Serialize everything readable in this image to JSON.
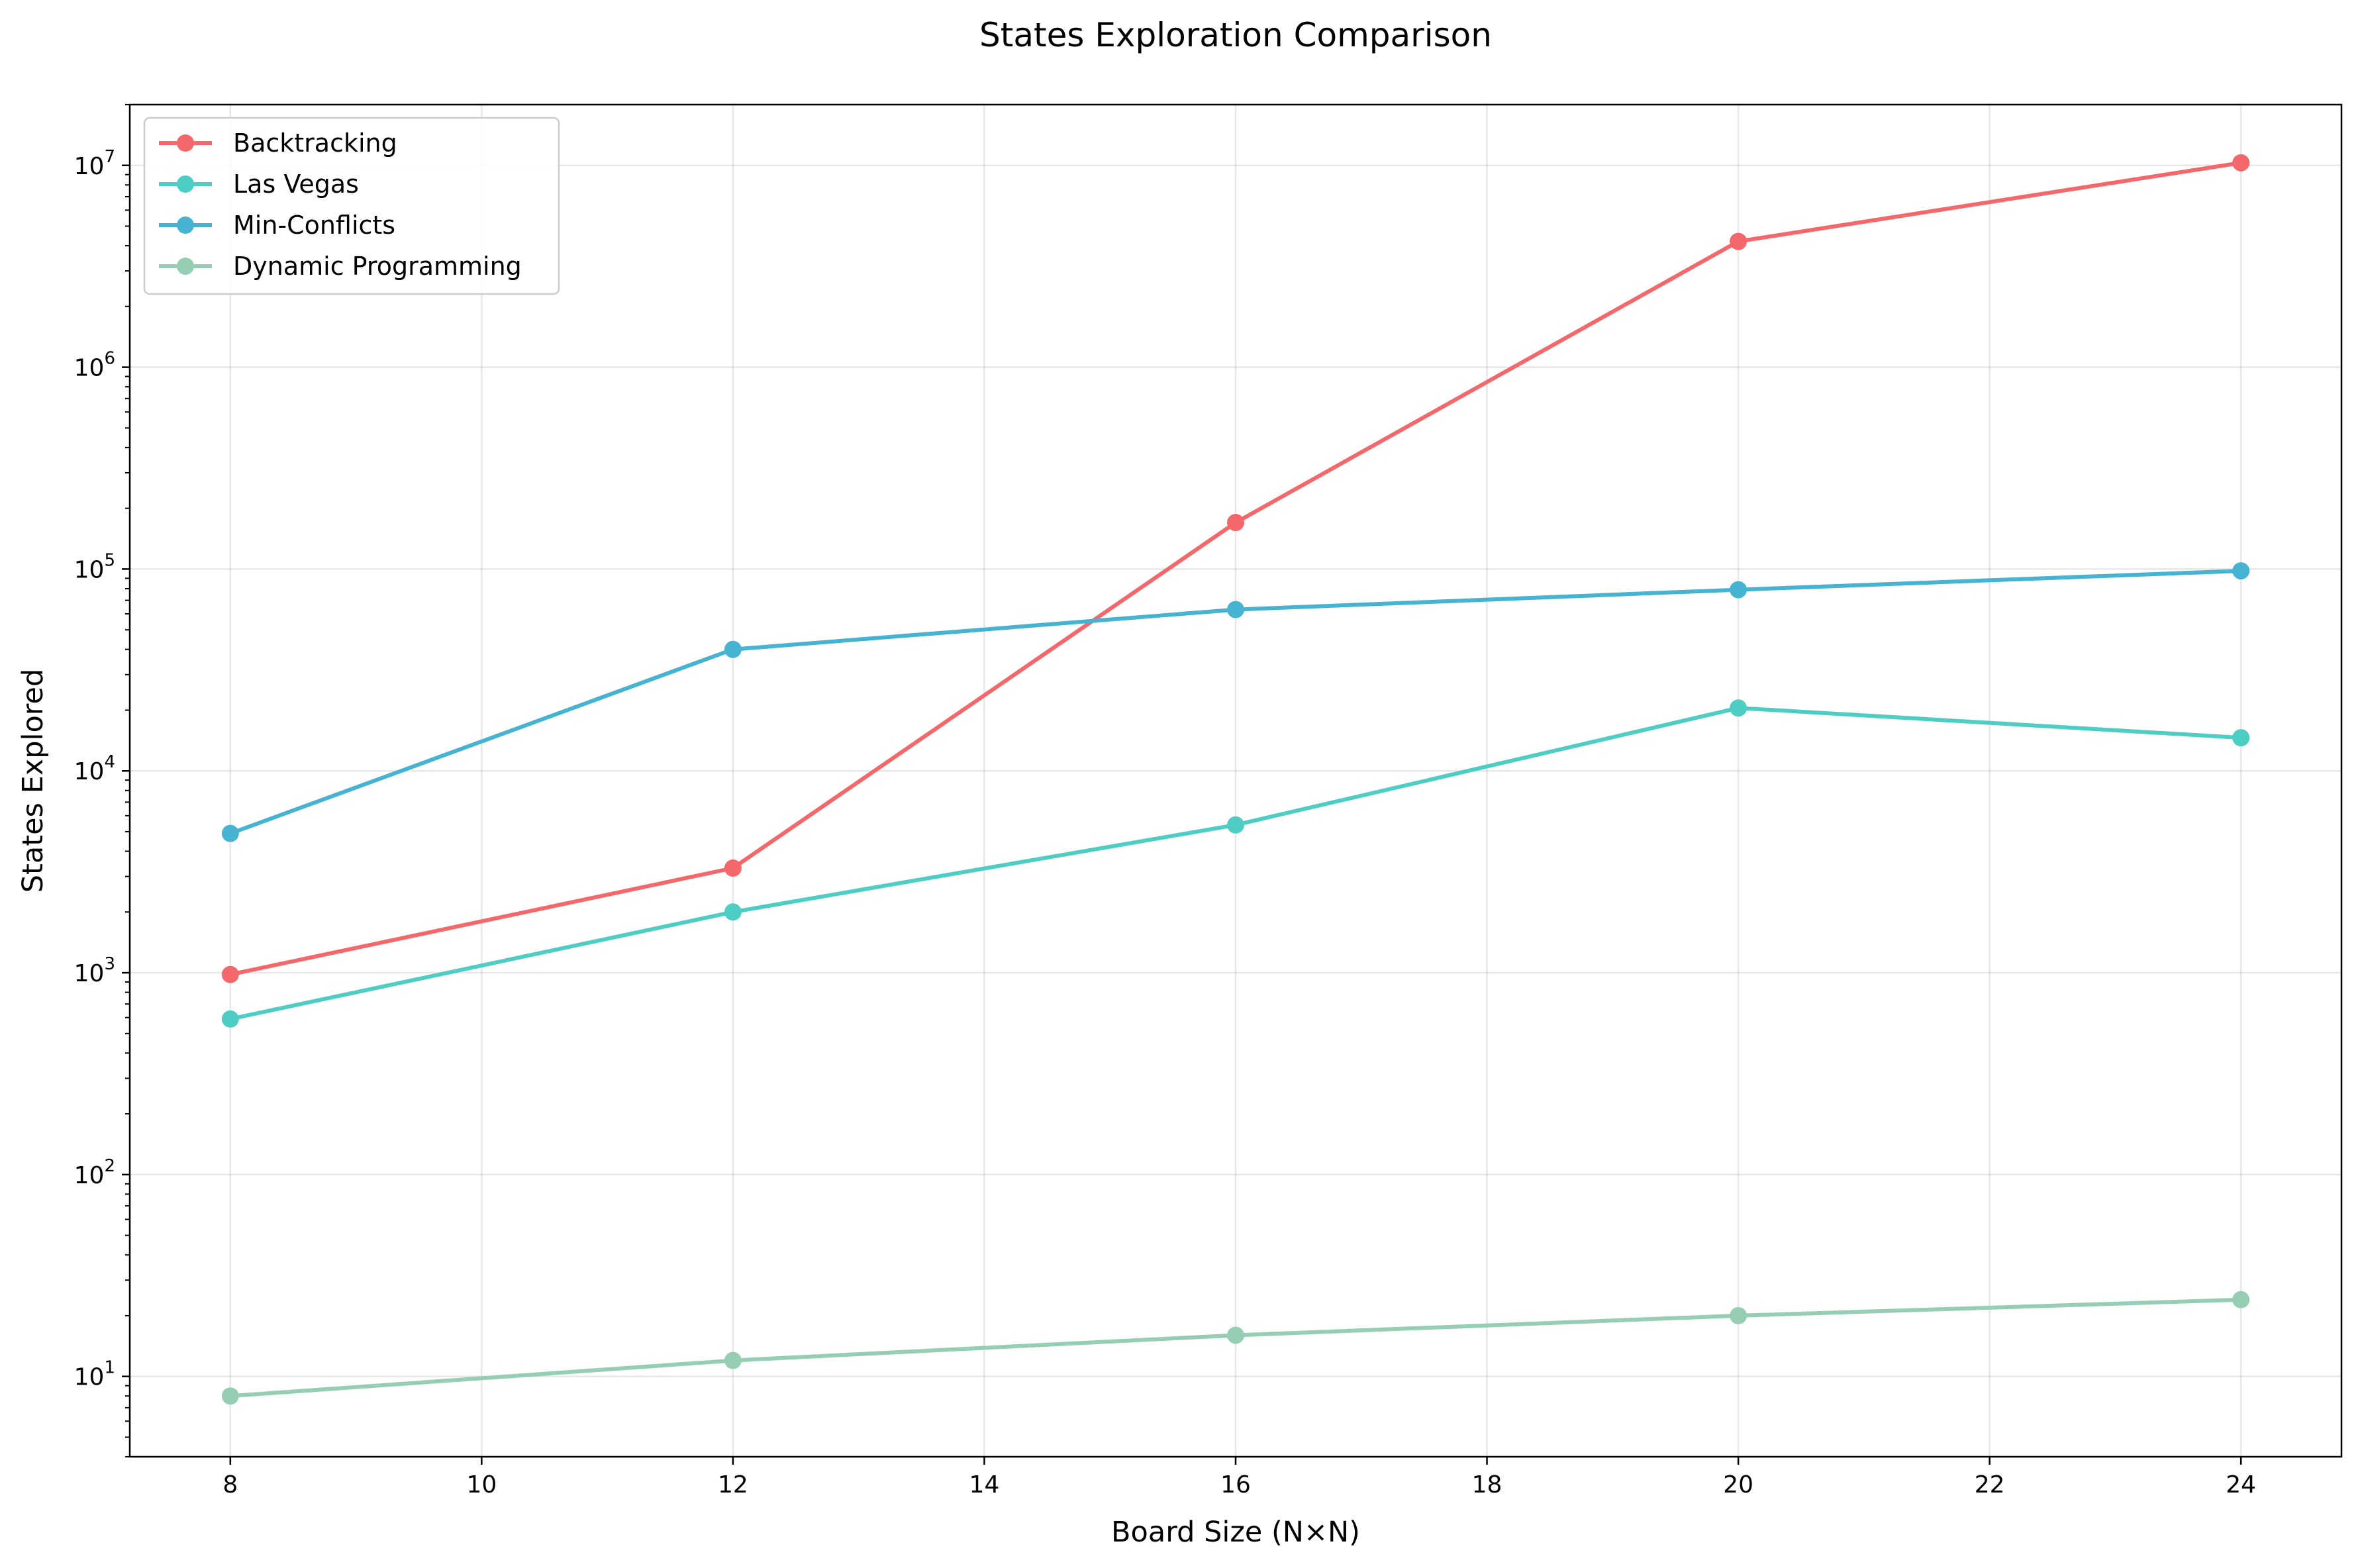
{
  "chart_data": {
    "type": "line",
    "title": "States Exploration Comparison",
    "xlabel": "Board Size (N×N)",
    "ylabel": "States Explored",
    "y_scale": "log",
    "xlim": [
      7.2,
      24.8
    ],
    "ylim": [
      4,
      20000000
    ],
    "x_ticks": [
      8,
      10,
      12,
      14,
      16,
      18,
      20,
      22,
      24
    ],
    "x_tick_labels": [
      "8",
      "10",
      "12",
      "14",
      "16",
      "18",
      "20",
      "22",
      "24"
    ],
    "y_ticks": [
      10,
      100,
      1000,
      10000,
      100000,
      1000000,
      10000000
    ],
    "y_tick_labels": [
      {
        "base": "10",
        "exp": "1"
      },
      {
        "base": "10",
        "exp": "2"
      },
      {
        "base": "10",
        "exp": "3"
      },
      {
        "base": "10",
        "exp": "4"
      },
      {
        "base": "10",
        "exp": "5"
      },
      {
        "base": "10",
        "exp": "6"
      },
      {
        "base": "10",
        "exp": "7"
      }
    ],
    "grid": true,
    "legend_position": "top-left",
    "x": [
      8,
      12,
      16,
      20,
      24
    ],
    "series": [
      {
        "name": "Backtracking",
        "color": "#f4676a",
        "values": [
          980,
          3300,
          170000,
          4200000,
          10300000
        ]
      },
      {
        "name": "Las Vegas",
        "color": "#4ecdc4",
        "values": [
          590,
          2000,
          5400,
          20500,
          14600
        ]
      },
      {
        "name": "Min-Conflicts",
        "color": "#45b3d1",
        "values": [
          4900,
          40000,
          63000,
          79000,
          98000
        ]
      },
      {
        "name": "Dynamic Programming",
        "color": "#96ceb4",
        "values": [
          8,
          12,
          16,
          20,
          24
        ]
      }
    ]
  }
}
